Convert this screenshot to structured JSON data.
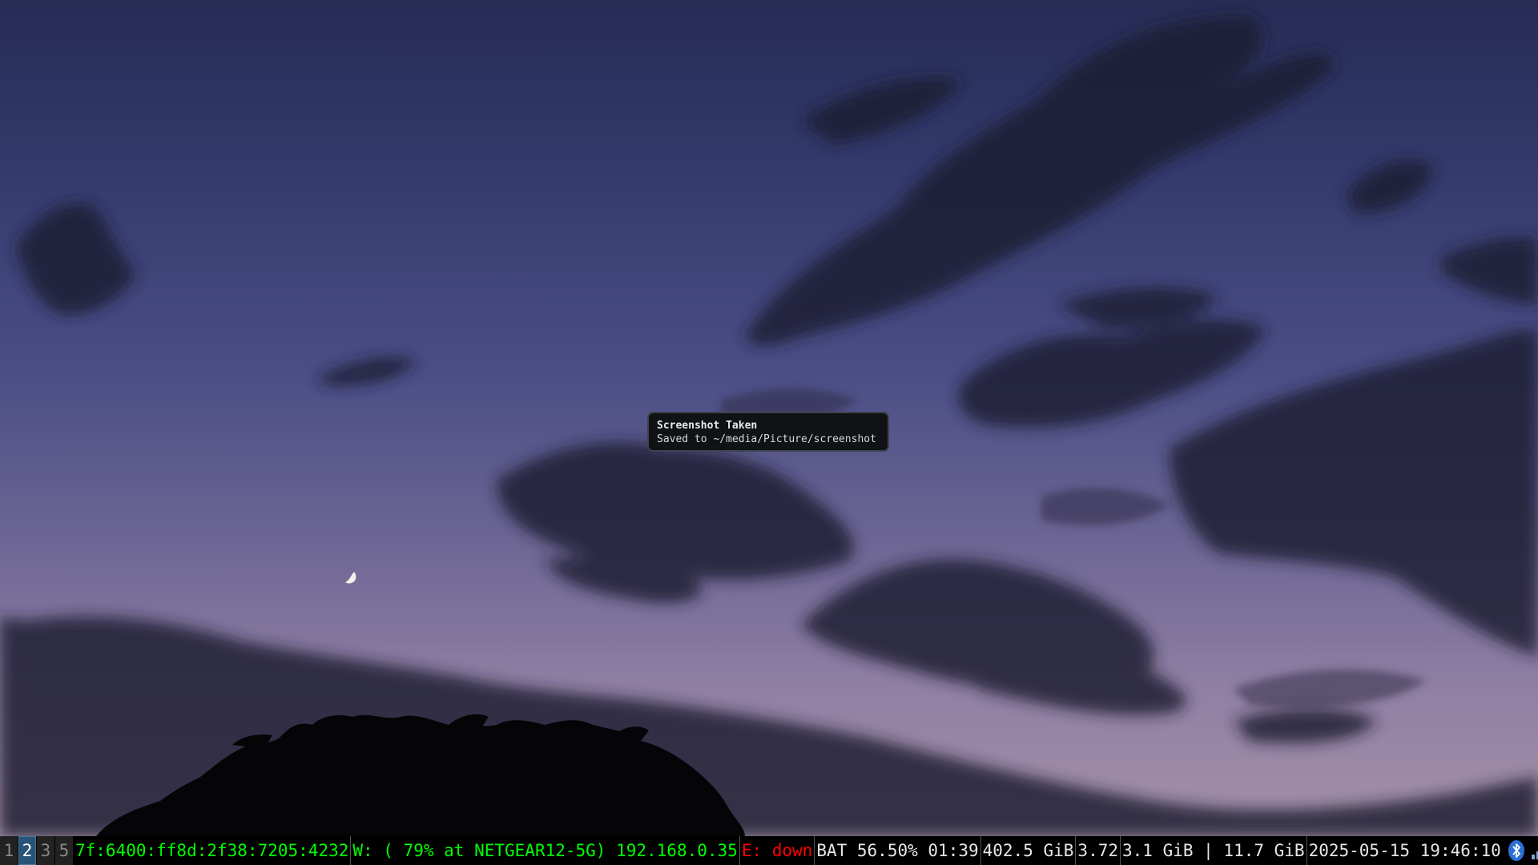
{
  "notification": {
    "summary": "Screenshot Taken",
    "body": "Saved to ~/media/Picture/screenshot"
  },
  "bar": {
    "workspaces": [
      {
        "label": "1",
        "focused": false
      },
      {
        "label": "2",
        "focused": true
      },
      {
        "label": "3",
        "focused": false
      },
      {
        "label": "5",
        "focused": false
      }
    ],
    "status": {
      "ipv6": "7f:6400:ff8d:2f38:7205:4232",
      "wireless": "W: ( 79% at NETGEAR12-5G) 192.168.0.35",
      "ethernet": "E: down",
      "battery": "BAT 56.50% 01:39",
      "disk": "402.5 GiB",
      "load": "3.72",
      "memory": "3.1 GiB | 11.7 GiB",
      "datetime": "2025-05-15 19:46:10"
    },
    "tray": [
      {
        "icon": "bluetooth-icon"
      },
      {
        "icon": "signal-strength-icon"
      },
      {
        "icon": "app-tray-icon"
      }
    ],
    "colors": {
      "good": "#00ff00",
      "bad": "#ff0000",
      "focused_workspace": "#285577"
    }
  }
}
